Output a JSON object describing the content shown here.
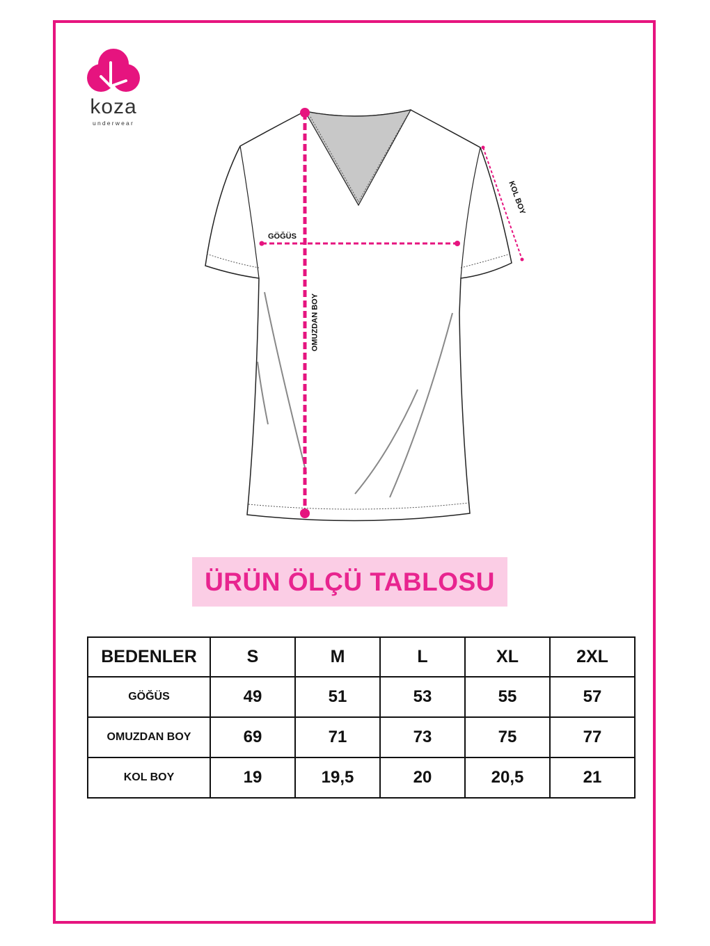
{
  "brand": {
    "name": "koza",
    "tagline": "underwear",
    "color": "#e6147f"
  },
  "diagram": {
    "labels": {
      "chest": "GÖĞÜS",
      "length": "OMUZDAN BOY",
      "sleeve": "KOL BOY"
    },
    "measure_color": "#e6147f"
  },
  "title": "ÜRÜN ÖLÇÜ TABLOSU",
  "table": {
    "header": [
      "BEDENLER",
      "S",
      "M",
      "L",
      "XL",
      "2XL"
    ],
    "rows": [
      {
        "label": "GÖĞÜS",
        "values": [
          "49",
          "51",
          "53",
          "55",
          "57"
        ]
      },
      {
        "label": "OMUZDAN BOY",
        "values": [
          "69",
          "71",
          "73",
          "75",
          "77"
        ]
      },
      {
        "label": "KOL BOY",
        "values": [
          "19",
          "19,5",
          "20",
          "20,5",
          "21"
        ]
      }
    ]
  }
}
